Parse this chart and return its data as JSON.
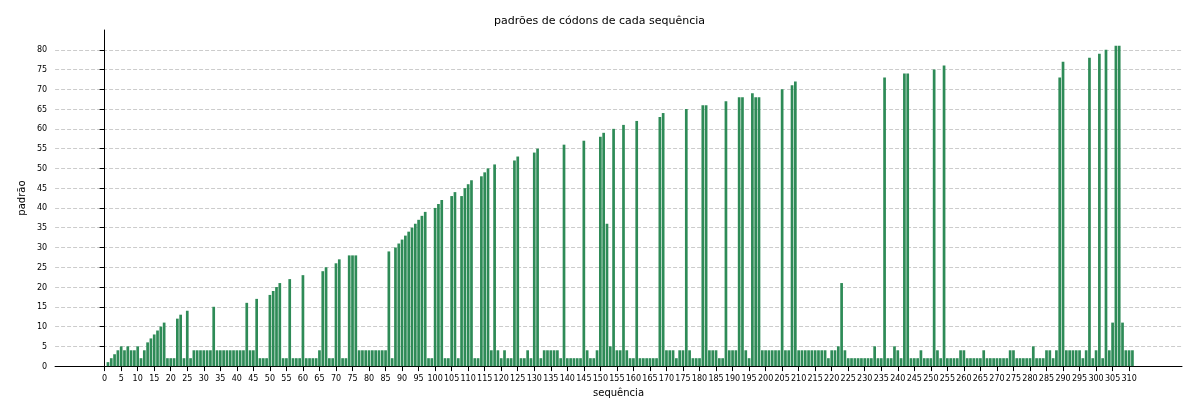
{
  "chart_data": {
    "type": "bar",
    "title": "padrões de códons de cada sequência",
    "xlabel": "sequência",
    "ylabel": "padrão",
    "color": "#2e8b57",
    "x": [
      0,
      1,
      2,
      3,
      4,
      5,
      6,
      7,
      8,
      9,
      10,
      11,
      12,
      13,
      14,
      15,
      16,
      17,
      18,
      19,
      20,
      21,
      22,
      23,
      24,
      25,
      26,
      27,
      28,
      29,
      30,
      31,
      32,
      33,
      34,
      35,
      36,
      37,
      38,
      39,
      40,
      41,
      42,
      43,
      44,
      45,
      46,
      47,
      48,
      49,
      50,
      51,
      52,
      53,
      54,
      55,
      56,
      57,
      58,
      59,
      60,
      61,
      62,
      63,
      64,
      65,
      66,
      67,
      68,
      69,
      70,
      71,
      72,
      73,
      74,
      75,
      76,
      77,
      78,
      79,
      80,
      81,
      82,
      83,
      84,
      85,
      86,
      87,
      88,
      89,
      90,
      91,
      92,
      93,
      94,
      95,
      96,
      97,
      98,
      99,
      100,
      101,
      102,
      103,
      104,
      105,
      106,
      107,
      108,
      109,
      110,
      111,
      112,
      113,
      114,
      115,
      116,
      117,
      118,
      119,
      120,
      121,
      122,
      123,
      124,
      125,
      126,
      127,
      128,
      129,
      130,
      131,
      132,
      133,
      134,
      135,
      136,
      137,
      138,
      139,
      140,
      141,
      142,
      143,
      144,
      145,
      146,
      147,
      148,
      149,
      150,
      151,
      152,
      153,
      154,
      155,
      156,
      157,
      158,
      159,
      160,
      161,
      162,
      163,
      164,
      165,
      166,
      167,
      168,
      169,
      170,
      171,
      172,
      173,
      174,
      175,
      176,
      177,
      178,
      179,
      180,
      181,
      182,
      183,
      184,
      185,
      186,
      187,
      188,
      189,
      190,
      191,
      192,
      193,
      194,
      195,
      196,
      197,
      198,
      199,
      200,
      201,
      202,
      203,
      204,
      205,
      206,
      207,
      208,
      209,
      210,
      211,
      212,
      213,
      214,
      215,
      216,
      217,
      218,
      219,
      220,
      221,
      222,
      223,
      224,
      225,
      226,
      227,
      228,
      229,
      230,
      231,
      232,
      233,
      234,
      235,
      236,
      237,
      238,
      239,
      240,
      241,
      242,
      243,
      244,
      245,
      246,
      247,
      248,
      249,
      250,
      251,
      252,
      253,
      254,
      255,
      256,
      257,
      258,
      259,
      260,
      261,
      262,
      263,
      264,
      265,
      266,
      267,
      268,
      269,
      270,
      271,
      272,
      273,
      274,
      275,
      276,
      277,
      278,
      279,
      280,
      281,
      282,
      283,
      284,
      285,
      286,
      287,
      288,
      289,
      290,
      291,
      292,
      293,
      294,
      295,
      296,
      297,
      298,
      299,
      300,
      301,
      302,
      303,
      304,
      305,
      306,
      307,
      308,
      309,
      310,
      311
    ],
    "values": [
      0,
      1,
      2,
      3,
      4,
      5,
      4,
      5,
      4,
      4,
      5,
      2,
      4,
      6,
      7,
      8,
      9,
      10,
      11,
      2,
      2,
      2,
      12,
      13,
      2,
      14,
      2,
      4,
      4,
      4,
      4,
      4,
      4,
      15,
      4,
      4,
      4,
      4,
      4,
      4,
      4,
      4,
      4,
      16,
      4,
      4,
      17,
      2,
      2,
      2,
      18,
      19,
      20,
      21,
      2,
      2,
      22,
      2,
      2,
      2,
      23,
      2,
      2,
      2,
      2,
      4,
      24,
      25,
      2,
      2,
      26,
      27,
      2,
      2,
      28,
      28,
      28,
      4,
      4,
      4,
      4,
      4,
      4,
      4,
      4,
      4,
      29,
      2,
      30,
      31,
      32,
      33,
      34,
      35,
      36,
      37,
      38,
      39,
      2,
      2,
      40,
      41,
      42,
      2,
      2,
      43,
      44,
      2,
      43,
      45,
      46,
      47,
      2,
      2,
      48,
      49,
      50,
      4,
      51,
      4,
      2,
      4,
      2,
      2,
      52,
      53,
      2,
      2,
      4,
      2,
      54,
      55,
      2,
      4,
      4,
      4,
      4,
      4,
      2,
      56,
      2,
      2,
      2,
      2,
      2,
      57,
      4,
      2,
      2,
      4,
      58,
      59,
      36,
      5,
      60,
      4,
      4,
      61,
      4,
      2,
      2,
      62,
      2,
      2,
      2,
      2,
      2,
      2,
      63,
      64,
      4,
      4,
      4,
      2,
      4,
      4,
      65,
      4,
      2,
      2,
      2,
      66,
      66,
      4,
      4,
      4,
      2,
      2,
      67,
      4,
      4,
      4,
      68,
      68,
      4,
      2,
      69,
      68,
      68,
      4,
      4,
      4,
      4,
      4,
      4,
      70,
      4,
      4,
      71,
      72,
      4,
      4,
      4,
      4,
      4,
      4,
      4,
      4,
      4,
      2,
      4,
      4,
      5,
      21,
      4,
      2,
      2,
      2,
      2,
      2,
      2,
      2,
      2,
      5,
      2,
      2,
      73,
      2,
      2,
      5,
      4,
      2,
      74,
      74,
      2,
      2,
      2,
      4,
      2,
      2,
      2,
      75,
      4,
      2,
      76,
      2,
      2,
      2,
      2,
      4,
      4,
      2,
      2,
      2,
      2,
      2,
      4,
      2,
      2,
      2,
      2,
      2,
      2,
      2,
      4,
      4,
      2,
      2,
      2,
      2,
      2,
      5,
      2,
      2,
      2,
      4,
      4,
      2,
      4,
      73,
      77,
      4,
      4,
      4,
      4,
      4,
      2,
      4,
      78,
      2,
      4,
      79,
      2,
      80,
      4,
      11,
      81,
      81,
      11,
      4,
      4,
      4
    ],
    "xlim": [
      -15,
      326
    ],
    "xticks": [
      0,
      5,
      10,
      15,
      20,
      25,
      30,
      35,
      40,
      45,
      50,
      55,
      60,
      65,
      70,
      75,
      80,
      85,
      90,
      95,
      100,
      105,
      110,
      115,
      120,
      125,
      130,
      135,
      140,
      145,
      150,
      155,
      160,
      165,
      170,
      175,
      180,
      185,
      190,
      195,
      200,
      205,
      210,
      215,
      220,
      225,
      230,
      235,
      240,
      245,
      250,
      255,
      260,
      265,
      270,
      275,
      280,
      285,
      290,
      295,
      300,
      305,
      310
    ],
    "ylim": [
      0,
      85
    ],
    "yticks": [
      0,
      5,
      10,
      15,
      20,
      25,
      30,
      35,
      40,
      45,
      50,
      55,
      60,
      65,
      70,
      75,
      80
    ],
    "grid": "y"
  }
}
